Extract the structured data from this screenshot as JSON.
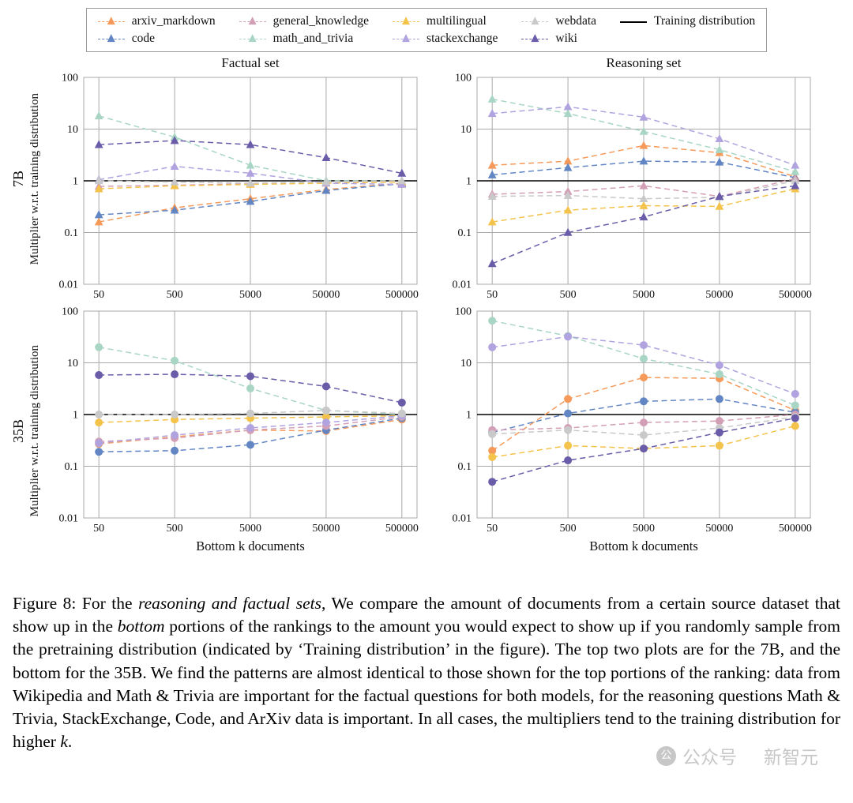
{
  "figure": {
    "legend": {
      "entries": [
        {
          "label": "arxiv_markdown",
          "color": "#f59a5a",
          "marker": "triangle"
        },
        {
          "label": "code",
          "color": "#6286c4",
          "marker": "triangle"
        },
        {
          "label": "general_knowledge",
          "color": "#d39fb6",
          "marker": "triangle"
        },
        {
          "label": "math_and_trivia",
          "color": "#a9d6c4",
          "marker": "triangle"
        },
        {
          "label": "multilingual",
          "color": "#f4c34b",
          "marker": "triangle"
        },
        {
          "label": "stackexchange",
          "color": "#b1a3df",
          "marker": "triangle"
        },
        {
          "label": "webdata",
          "color": "#c9c9c9",
          "marker": "triangle"
        },
        {
          "label": "wiki",
          "color": "#6a5ca8",
          "marker": "triangle"
        },
        {
          "label": "Training distribution",
          "color": "#000000",
          "marker": "line"
        }
      ]
    },
    "grid_color": "#a9a9a9"
  },
  "chart_data": [
    {
      "type": "line",
      "title": "Factual set",
      "row_label": "7B",
      "ylabel": "Multiplier w.r.t. training distribution",
      "xlabel": "",
      "marker": "triangle",
      "x": [
        50,
        500,
        5000,
        50000,
        500000
      ],
      "yticks": [
        0.01,
        0.1,
        1,
        10,
        100
      ],
      "ylim": [
        0.01,
        100
      ],
      "reference_line": {
        "label": "Training distribution",
        "y": 1
      },
      "series": [
        {
          "name": "arxiv_markdown",
          "values": [
            0.16,
            0.3,
            0.45,
            0.68,
            0.9
          ]
        },
        {
          "name": "code",
          "values": [
            0.22,
            0.27,
            0.4,
            0.65,
            0.88
          ]
        },
        {
          "name": "general_knowledge",
          "values": [
            0.78,
            0.82,
            0.88,
            0.92,
            0.97
          ]
        },
        {
          "name": "math_and_trivia",
          "values": [
            18,
            7,
            2,
            1.0,
            1.0
          ]
        },
        {
          "name": "multilingual",
          "values": [
            0.7,
            0.8,
            0.85,
            0.9,
            0.95
          ]
        },
        {
          "name": "stackexchange",
          "values": [
            1.05,
            1.9,
            1.4,
            0.9,
            0.85
          ]
        },
        {
          "name": "webdata",
          "values": [
            1.0,
            0.95,
            0.9,
            0.95,
            1.0
          ]
        },
        {
          "name": "wiki",
          "values": [
            5,
            6,
            5,
            2.8,
            1.4
          ]
        }
      ]
    },
    {
      "type": "line",
      "title": "Reasoning set",
      "row_label": "7B",
      "ylabel": "Multiplier w.r.t. training distribution",
      "xlabel": "",
      "marker": "triangle",
      "x": [
        50,
        500,
        5000,
        50000,
        500000
      ],
      "yticks": [
        0.01,
        0.1,
        1,
        10,
        100
      ],
      "ylim": [
        0.01,
        100
      ],
      "reference_line": {
        "label": "Training distribution",
        "y": 1
      },
      "series": [
        {
          "name": "arxiv_markdown",
          "values": [
            2.0,
            2.4,
            4.8,
            3.5,
            1.2
          ]
        },
        {
          "name": "code",
          "values": [
            1.3,
            1.8,
            2.4,
            2.3,
            1.15
          ]
        },
        {
          "name": "general_knowledge",
          "values": [
            0.55,
            0.62,
            0.8,
            0.5,
            1.1
          ]
        },
        {
          "name": "math_and_trivia",
          "values": [
            38,
            20,
            9,
            4,
            1.5
          ]
        },
        {
          "name": "multilingual",
          "values": [
            0.16,
            0.27,
            0.33,
            0.32,
            0.7
          ]
        },
        {
          "name": "stackexchange",
          "values": [
            20,
            27,
            17,
            6.5,
            2.0
          ]
        },
        {
          "name": "webdata",
          "values": [
            0.5,
            0.52,
            0.45,
            0.48,
            1.0
          ]
        },
        {
          "name": "wiki",
          "values": [
            0.025,
            0.1,
            0.2,
            0.5,
            0.8
          ]
        }
      ]
    },
    {
      "type": "line",
      "title": "",
      "row_label": "35B",
      "ylabel": "Multiplier w.r.t. training distribution",
      "xlabel": "Bottom k documents",
      "marker": "circle",
      "x": [
        50,
        500,
        5000,
        50000,
        500000
      ],
      "yticks": [
        0.01,
        0.1,
        1,
        10,
        100
      ],
      "ylim": [
        0.01,
        100
      ],
      "reference_line": {
        "label": "Training distribution",
        "y": 1
      },
      "series": [
        {
          "name": "arxiv_markdown",
          "values": [
            0.27,
            0.37,
            0.5,
            0.48,
            0.8
          ]
        },
        {
          "name": "code",
          "values": [
            0.19,
            0.2,
            0.26,
            0.5,
            0.85
          ]
        },
        {
          "name": "general_knowledge",
          "values": [
            0.3,
            0.35,
            0.5,
            0.6,
            0.9
          ]
        },
        {
          "name": "math_and_trivia",
          "values": [
            20,
            11,
            3.2,
            1.2,
            1.0
          ]
        },
        {
          "name": "multilingual",
          "values": [
            0.7,
            0.8,
            0.85,
            0.9,
            0.95
          ]
        },
        {
          "name": "stackexchange",
          "values": [
            0.28,
            0.4,
            0.55,
            0.7,
            0.95
          ]
        },
        {
          "name": "webdata",
          "values": [
            1.0,
            1.0,
            1.05,
            1.2,
            1.05
          ]
        },
        {
          "name": "wiki",
          "values": [
            5.8,
            6.0,
            5.5,
            3.5,
            1.7
          ]
        }
      ]
    },
    {
      "type": "line",
      "title": "",
      "row_label": "35B",
      "ylabel": "Multiplier w.r.t. training distribution",
      "xlabel": "Bottom k documents",
      "marker": "circle",
      "x": [
        50,
        500,
        5000,
        50000,
        500000
      ],
      "yticks": [
        0.01,
        0.1,
        1,
        10,
        100
      ],
      "ylim": [
        0.01,
        100
      ],
      "reference_line": {
        "label": "Training distribution",
        "y": 1
      },
      "series": [
        {
          "name": "arxiv_markdown",
          "values": [
            0.2,
            2.0,
            5.2,
            5.0,
            1.2
          ]
        },
        {
          "name": "code",
          "values": [
            0.45,
            1.05,
            1.8,
            2.0,
            1.1
          ]
        },
        {
          "name": "general_knowledge",
          "values": [
            0.5,
            0.55,
            0.7,
            0.75,
            1.0
          ]
        },
        {
          "name": "math_and_trivia",
          "values": [
            65,
            33,
            12,
            6,
            1.5
          ]
        },
        {
          "name": "multilingual",
          "values": [
            0.15,
            0.25,
            0.22,
            0.25,
            0.6
          ]
        },
        {
          "name": "stackexchange",
          "values": [
            20,
            32,
            22,
            9,
            2.5
          ]
        },
        {
          "name": "webdata",
          "values": [
            0.42,
            0.5,
            0.4,
            0.55,
            0.9
          ]
        },
        {
          "name": "wiki",
          "values": [
            0.05,
            0.13,
            0.22,
            0.45,
            0.85
          ]
        }
      ]
    }
  ],
  "caption": {
    "segments": [
      {
        "text": "Figure 8: For the ",
        "italic": false
      },
      {
        "text": "reasoning and factual sets",
        "italic": true
      },
      {
        "text": ", We compare the amount of documents from a certain source dataset that show up in the ",
        "italic": false
      },
      {
        "text": "bottom",
        "italic": true
      },
      {
        "text": " portions of the rankings to the amount you would expect to show up if you randomly sample from the pretraining distribution (indicated by ‘Training distribution’ in the figure). The top two plots are for the 7B, and the bottom for the 35B. We find the patterns are almost identical to those shown for the top portions of the ranking: data from Wikipedia and Math & Trivia are important for the factual questions for both models, for the reasoning questions Math & Trivia, StackExchange, Code, and ArXiv data is important. In all cases, the multipliers tend to the training distribution for higher ",
        "italic": false
      },
      {
        "text": "k",
        "italic": true
      },
      {
        "text": ".",
        "italic": false
      }
    ]
  },
  "watermark": {
    "badge": "公",
    "text1": "公众号",
    "text2": "新智元"
  }
}
